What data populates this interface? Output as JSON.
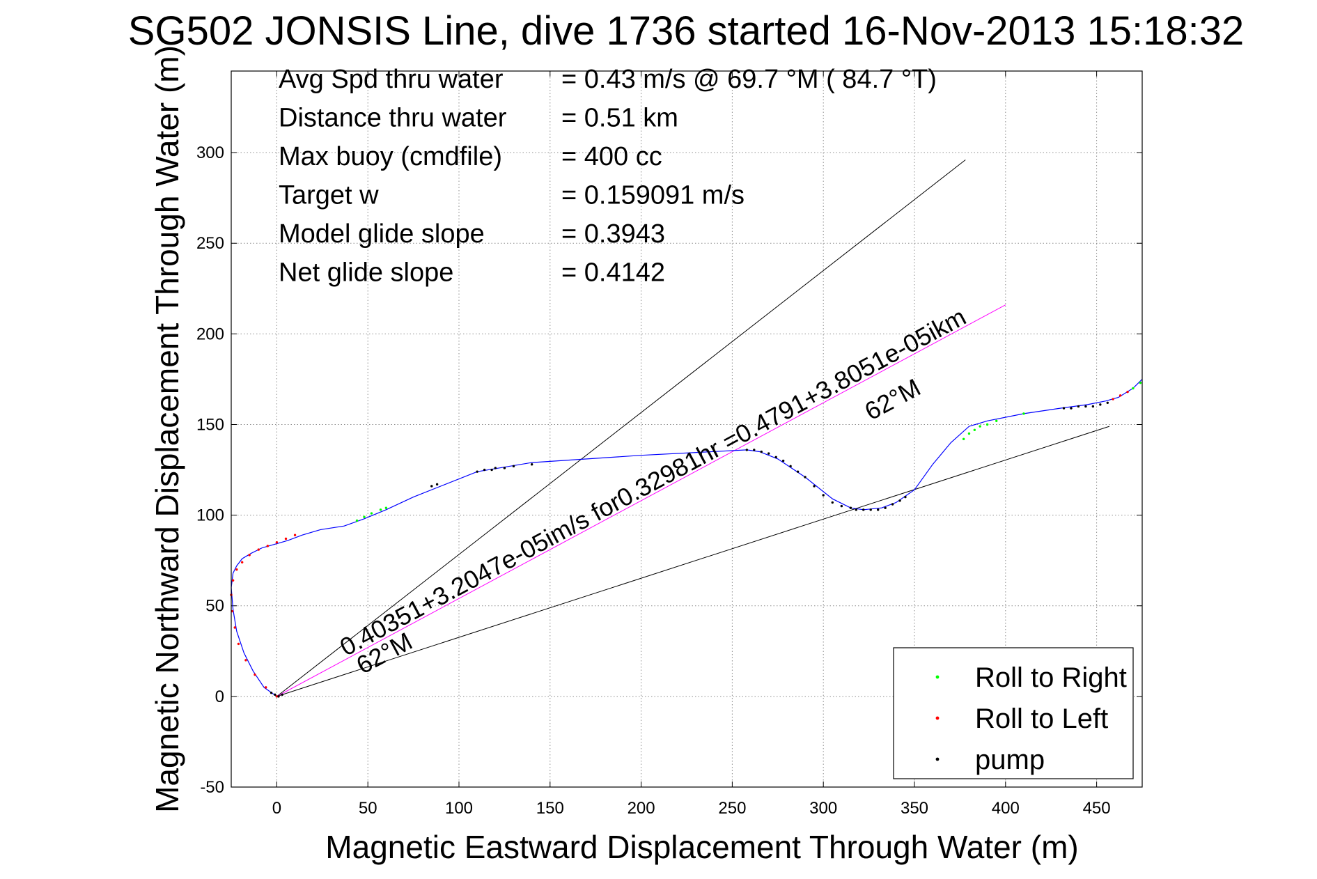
{
  "chart_data": {
    "type": "line",
    "title": "SG502 JONSIS Line, dive 1736 started 16-Nov-2013 15:18:32",
    "xlabel": "Magnetic Eastward Displacement Through Water (m)",
    "ylabel": "Magnetic Northward Displacement Through Water (m)",
    "xlim": [
      -25,
      475
    ],
    "ylim": [
      -50,
      345
    ],
    "xticks": [
      0,
      50,
      100,
      150,
      200,
      250,
      300,
      350,
      400,
      450
    ],
    "yticks": [
      -50,
      0,
      50,
      100,
      150,
      200,
      250,
      300
    ],
    "grid": true,
    "legend_position": "bottom-right",
    "stats": [
      {
        "label": "Avg Spd thru water",
        "value": "=  0.43 m/s @  69.7 °M ( 84.7 °T)"
      },
      {
        "label": "Distance thru water",
        "value": "=  0.51 km"
      },
      {
        "label": "Max buoy (cmdfile)",
        "value": "= 400 cc"
      },
      {
        "label": "Target w",
        "value": "= 0.159091 m/s"
      },
      {
        "label": "Model glide slope",
        "value": "= 0.3943"
      },
      {
        "label": "Net glide slope",
        "value": "= 0.4142"
      }
    ],
    "annotations": [
      {
        "text": "0.40351+3.2047e-05im/s for0.32981hr =0.4791+3.8051e-05ikm",
        "x": 38,
        "y": 22
      },
      {
        "text": "62°M",
        "x": 47,
        "y": 12
      },
      {
        "text": "62°M",
        "x": 326,
        "y": 152
      }
    ],
    "reference_lines": [
      {
        "name": "heading-upper",
        "x": [
          0,
          378
        ],
        "y": [
          0,
          296
        ],
        "color": "#000000"
      },
      {
        "name": "heading-lower",
        "x": [
          0,
          457
        ],
        "y": [
          0,
          149
        ],
        "color": "#000000"
      },
      {
        "name": "net-track",
        "x": [
          0,
          400
        ],
        "y": [
          0,
          216
        ],
        "color": "#ff00ff"
      }
    ],
    "track": {
      "color": "#0000ff",
      "x": [
        0,
        -7,
        -13,
        -18,
        -22,
        -24,
        -25,
        -24,
        -22,
        -19,
        -14,
        -8,
        -1,
        6,
        14,
        24,
        37,
        48,
        60,
        75,
        90,
        110,
        140,
        200,
        258,
        265,
        275,
        290,
        305,
        315,
        322,
        332,
        340,
        350,
        360,
        370,
        380,
        390,
        410,
        430,
        445,
        455,
        462,
        470,
        475
      ],
      "y": [
        0,
        5,
        14,
        24,
        36,
        48,
        60,
        68,
        72,
        76,
        79,
        82,
        84,
        86,
        89,
        92,
        94,
        98,
        103,
        110,
        116,
        124,
        129,
        133,
        136,
        135,
        131,
        121,
        109,
        104,
        103,
        104,
        107,
        114,
        128,
        140,
        149,
        152,
        156,
        159,
        161,
        163,
        165,
        170,
        175
      ]
    },
    "series": [
      {
        "name": "Roll to Right",
        "color": "#00ff00",
        "x": [
          44,
          48,
          52,
          57,
          60,
          377,
          380,
          383,
          386,
          390,
          395,
          410,
          470,
          474
        ],
        "y": [
          97,
          99,
          101,
          103,
          104,
          142,
          145,
          147,
          149,
          150,
          152,
          156,
          170,
          173
        ]
      },
      {
        "name": "Roll to Left",
        "color": "#ff0000",
        "x": [
          0,
          -6,
          -12,
          -17,
          -21,
          -23,
          -24.5,
          -25,
          -24,
          -22,
          -19,
          -15,
          -10,
          -5,
          0,
          5,
          10,
          459,
          463,
          467
        ],
        "y": [
          0,
          5,
          12,
          20,
          29,
          38,
          47,
          56,
          64,
          70,
          74,
          78,
          81,
          83,
          85,
          87,
          89,
          164,
          166,
          168
        ]
      },
      {
        "name": "pump",
        "color": "#000000",
        "x": [
          1,
          -1,
          -3,
          3,
          85,
          88,
          110,
          114,
          118,
          120,
          125,
          130,
          140,
          258,
          262,
          266,
          270,
          274,
          278,
          282,
          286,
          290,
          295,
          300,
          305,
          310,
          315,
          318,
          322,
          326,
          330,
          334,
          338,
          342,
          345,
          432,
          436,
          440,
          444,
          448,
          452,
          456
        ],
        "y": [
          0,
          1,
          2,
          1,
          116,
          117,
          124,
          125,
          125,
          126,
          126,
          127,
          128,
          136,
          136,
          135,
          134,
          132,
          130,
          127,
          124,
          121,
          116,
          111,
          107,
          105,
          104,
          103,
          103,
          103,
          103,
          104,
          106,
          108,
          110,
          159,
          159,
          160,
          160,
          160,
          161,
          162
        ]
      }
    ]
  }
}
